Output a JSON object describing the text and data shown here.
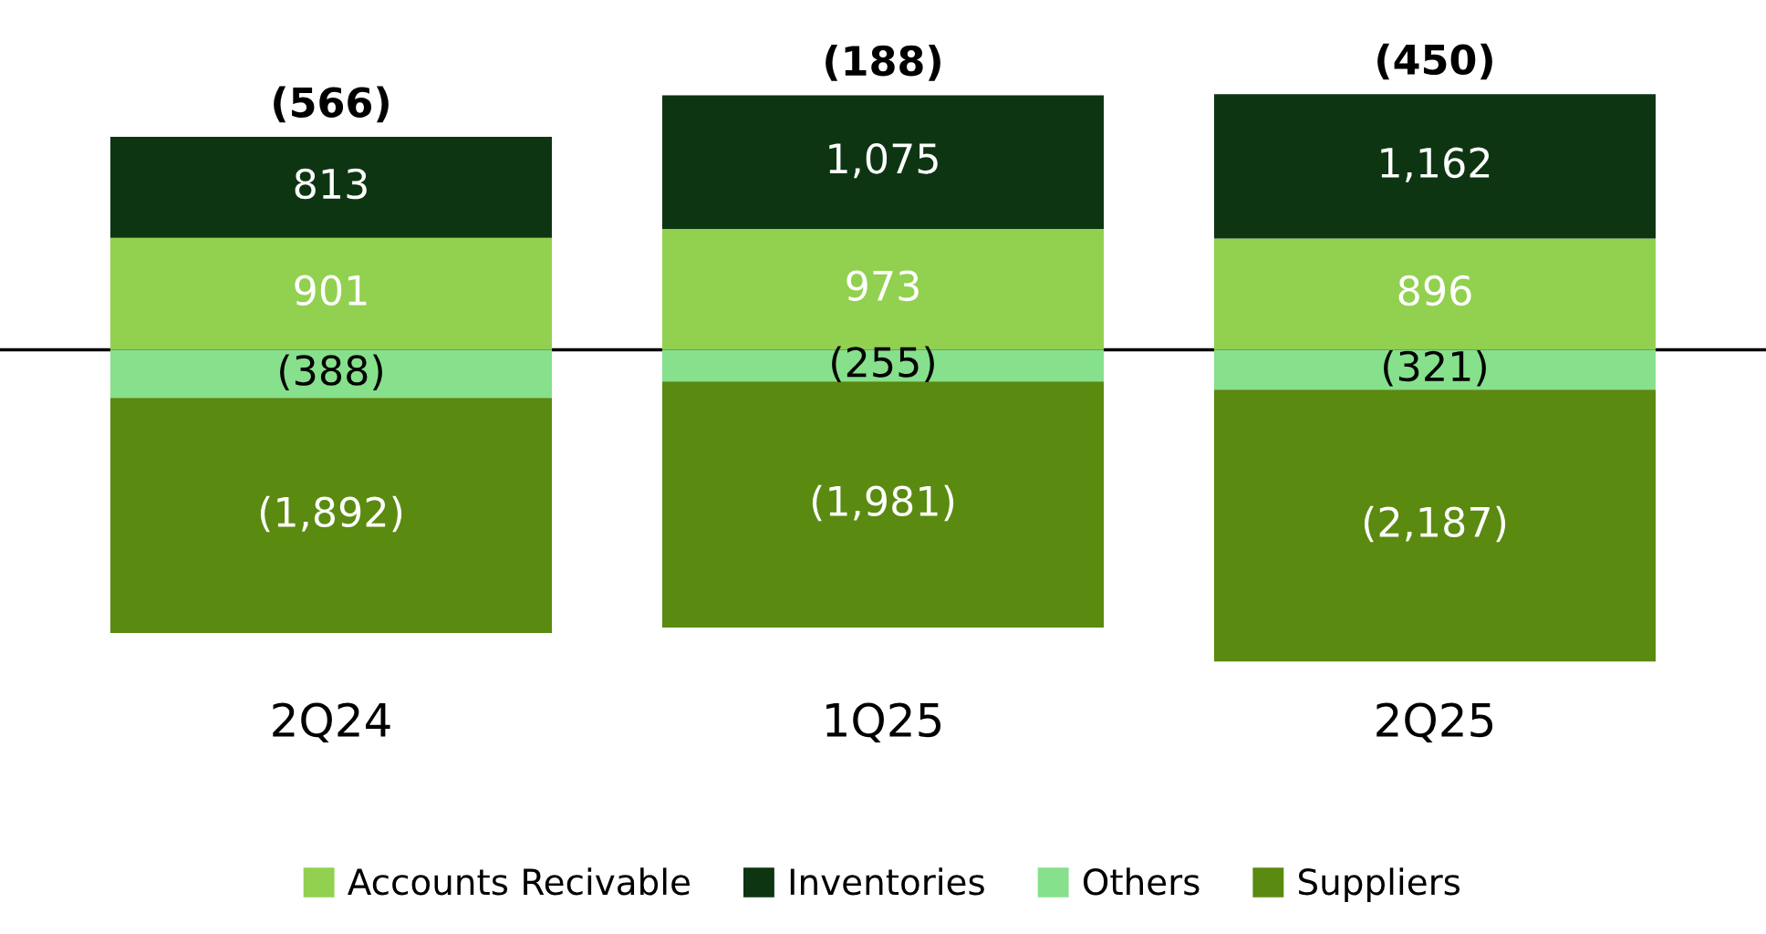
{
  "chart_data": {
    "type": "bar",
    "stacked": true,
    "categories": [
      "2Q24",
      "1Q25",
      "2Q25"
    ],
    "series": [
      {
        "name": "Accounts Recivable",
        "color": "#92d050",
        "values": [
          901,
          973,
          896
        ],
        "value_labels": [
          "901",
          "973",
          "896"
        ]
      },
      {
        "name": "Inventories",
        "color": "#0d3512",
        "values": [
          813,
          1075,
          1162
        ],
        "value_labels": [
          "813",
          "1,075",
          "1,162"
        ]
      },
      {
        "name": "Others",
        "color": "#86e08c",
        "values": [
          -388,
          -255,
          -321
        ],
        "value_labels": [
          "(388)",
          "(255)",
          "(321)"
        ]
      },
      {
        "name": "Suppliers",
        "color": "#5a8a0f",
        "values": [
          -1892,
          -1981,
          -2187
        ],
        "value_labels": [
          "(1,892)",
          "(1,981)",
          "(2,187)"
        ]
      }
    ],
    "totals": [
      "(566)",
      "(188)",
      "(450)"
    ],
    "ref_lines": [
      {
        "axis": "y",
        "value": 0,
        "color": "#000000"
      }
    ],
    "legend": "bottom",
    "grid": false,
    "tick_labels": "x"
  }
}
